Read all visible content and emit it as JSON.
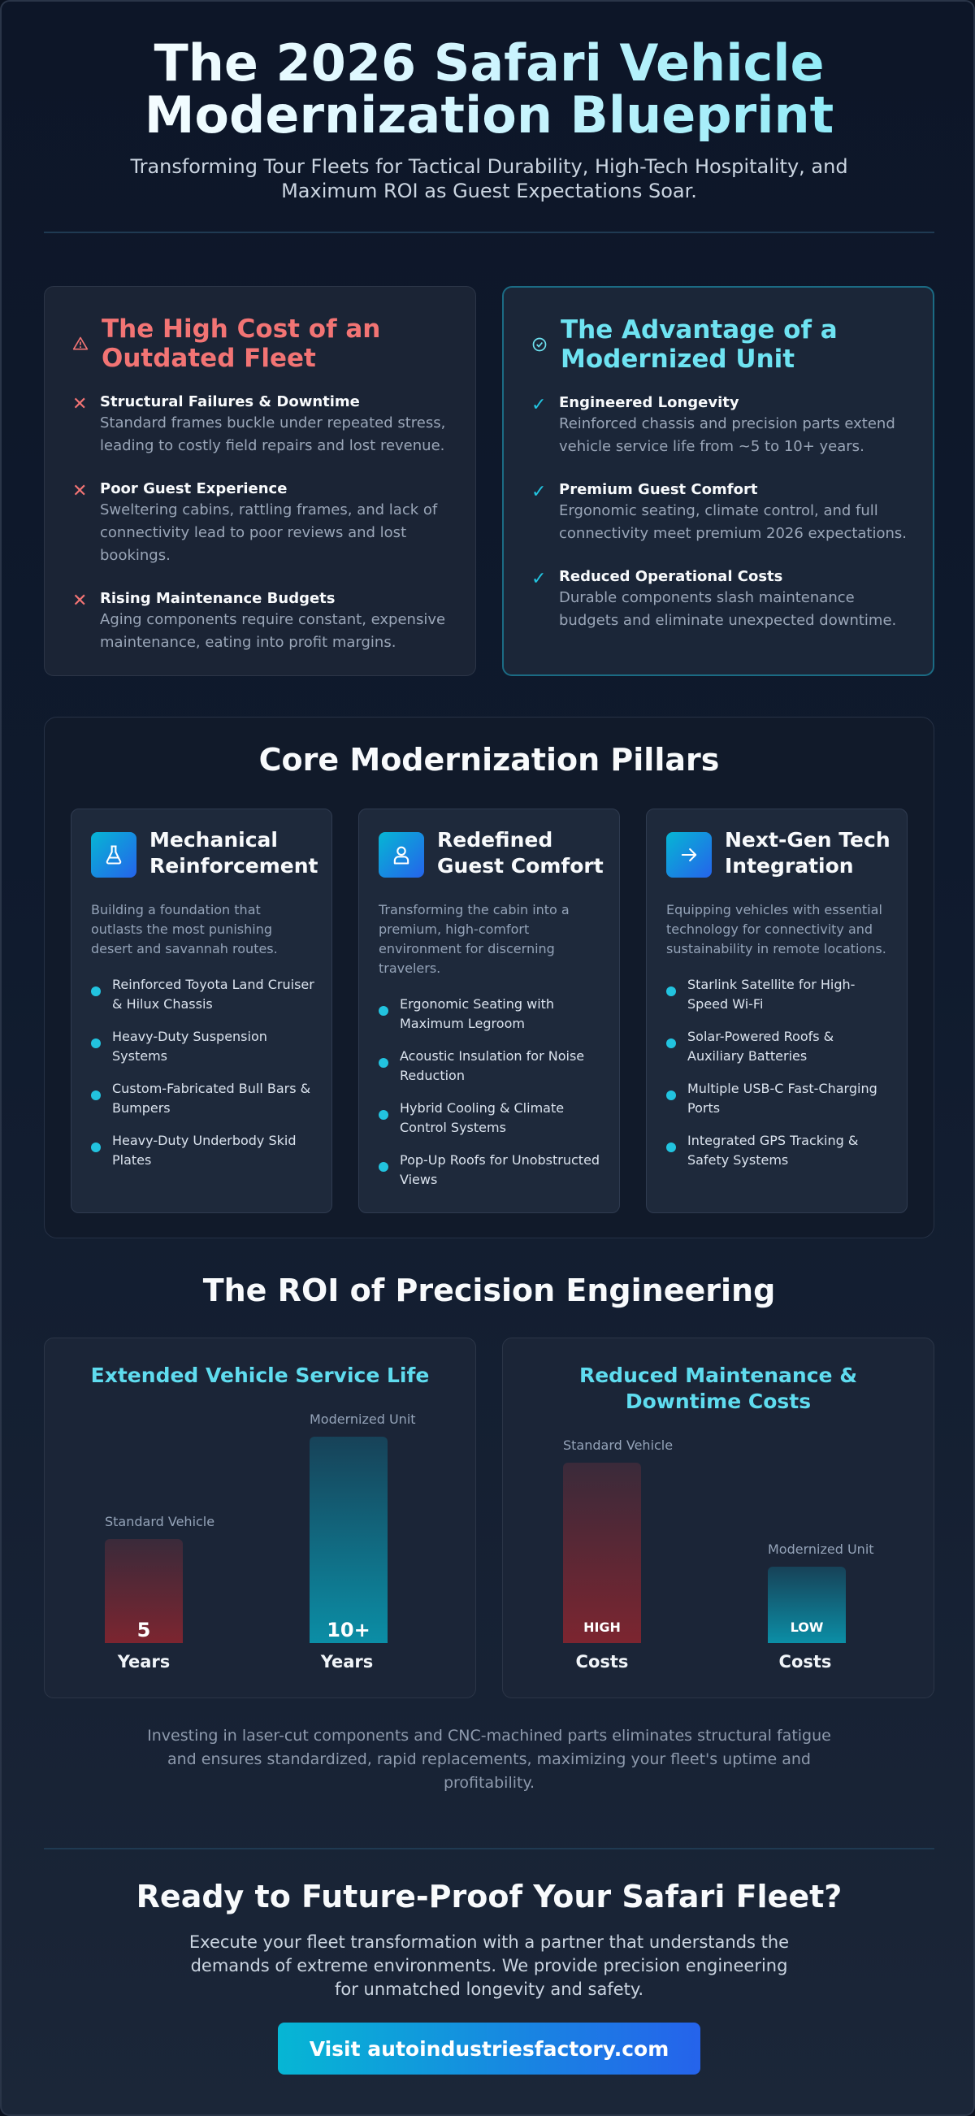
{
  "hero": {
    "title": "The 2026 Safari Vehicle Modernization Blueprint",
    "subtitle": "Transforming Tour Fleets for Tactical Durability, High-Tech Hospitality, and Maximum ROI as Guest Expectations Soar."
  },
  "comparison": {
    "outdated": {
      "icon": "warning-triangle-icon",
      "title": "The High Cost of an Outdated Fleet",
      "items": [
        {
          "title": "Structural Failures & Downtime",
          "text": "Standard frames buckle under repeated stress, leading to costly field repairs and lost revenue."
        },
        {
          "title": "Poor Guest Experience",
          "text": "Sweltering cabins, rattling frames, and lack of connectivity lead to poor reviews and lost bookings."
        },
        {
          "title": "Rising Maintenance Budgets",
          "text": "Aging components require constant, expensive maintenance, eating into profit margins."
        }
      ]
    },
    "modernized": {
      "icon": "check-circle-icon",
      "title": "The Advantage of a Modernized Unit",
      "items": [
        {
          "title": "Engineered Longevity",
          "text": "Reinforced chassis and precision parts extend vehicle service life from ~5 to 10+ years."
        },
        {
          "title": "Premium Guest Comfort",
          "text": "Ergonomic seating, climate control, and full connectivity meet premium 2026 expectations."
        },
        {
          "title": "Reduced Operational Costs",
          "text": "Durable components slash maintenance budgets and eliminate unexpected downtime."
        }
      ]
    }
  },
  "pillars": {
    "title": "Core Modernization Pillars",
    "cards": [
      {
        "icon": "flask-icon",
        "title": "Mechanical Reinforcement",
        "desc": "Building a foundation that outlasts the most punishing desert and savannah routes.",
        "points": [
          "Reinforced Toyota Land Cruiser & Hilux Chassis",
          "Heavy-Duty Suspension Systems",
          "Custom-Fabricated Bull Bars & Bumpers",
          "Heavy-Duty Underbody Skid Plates"
        ]
      },
      {
        "icon": "user-icon",
        "title": "Redefined Guest Comfort",
        "desc": "Transforming the cabin into a premium, high-comfort environment for discerning travelers.",
        "points": [
          "Ergonomic Seating with Maximum Legroom",
          "Acoustic Insulation for Noise Reduction",
          "Hybrid Cooling & Climate Control Systems",
          "Pop-Up Roofs for Unobstructed Views"
        ]
      },
      {
        "icon": "arrow-right-icon",
        "title": "Next-Gen Tech Integration",
        "desc": "Equipping vehicles with essential technology for connectivity and sustainability in remote locations.",
        "points": [
          "Starlink Satellite for High-Speed Wi-Fi",
          "Solar-Powered Roofs & Auxiliary Batteries",
          "Multiple USB-C Fast-Charging Ports",
          "Integrated GPS Tracking & Safety Systems"
        ]
      }
    ]
  },
  "roi": {
    "title": "The ROI of Precision Engineering",
    "service_life": {
      "title": "Extended Vehicle Service Life",
      "bars": [
        {
          "label": "Standard Vehicle",
          "value": "5",
          "unit": "Years"
        },
        {
          "label": "Modernized Unit",
          "value": "10+",
          "unit": "Years"
        }
      ]
    },
    "maintenance": {
      "title": "Reduced Maintenance & Downtime Costs",
      "bars": [
        {
          "label": "Standard Vehicle",
          "value": "HIGH",
          "unit": "Costs"
        },
        {
          "label": "Modernized Unit",
          "value": "LOW",
          "unit": "Costs"
        }
      ]
    },
    "note": "Investing in laser-cut components and CNC-machined parts eliminates structural fatigue and ensures standardized, rapid replacements, maximizing your fleet's uptime and profitability."
  },
  "cta": {
    "title": "Ready to Future-Proof Your Safari Fleet?",
    "text": "Execute your fleet transformation with a partner that understands the demands of extreme environments. We provide precision engineering for unmatched longevity and safety.",
    "button": "Visit autoindustriesfactory.com"
  },
  "colors": {
    "accent_cyan": "#22c3df",
    "accent_blue": "#2563eb",
    "warning_red": "#f27474",
    "background": "#0d1628"
  }
}
